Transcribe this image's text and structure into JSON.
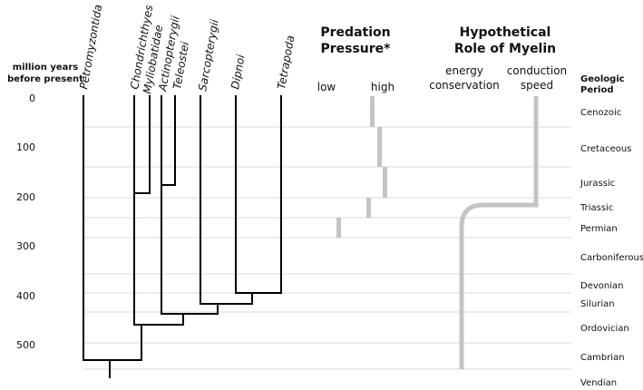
{
  "axis": {
    "label_line1": "million years",
    "label_line2": "before present",
    "ticks": [
      {
        "value": 0,
        "label": "0"
      },
      {
        "value": 100,
        "label": "100"
      },
      {
        "value": 200,
        "label": "200"
      },
      {
        "value": 300,
        "label": "300"
      },
      {
        "value": 400,
        "label": "400"
      },
      {
        "value": 500,
        "label": "500"
      }
    ]
  },
  "taxa": [
    {
      "id": "petromyzontida",
      "label": "Petromyzontida"
    },
    {
      "id": "chondrichthyes",
      "label": "Chondrichthyes"
    },
    {
      "id": "myliobatidae",
      "label": "Myliobatidae"
    },
    {
      "id": "actinopterygii",
      "label": "Actinopterygii"
    },
    {
      "id": "teleostei",
      "label": "Teleostei"
    },
    {
      "id": "sarcopterygii",
      "label": "Sarcopterygii"
    },
    {
      "id": "dipnoi",
      "label": "Dipnoi"
    },
    {
      "id": "tetrapoda",
      "label": "Tetrapoda"
    }
  ],
  "predation": {
    "title_line1": "Predation",
    "title_line2": "Pressure*",
    "low_label": "low",
    "high_label": "high"
  },
  "myelin": {
    "title_line1": "Hypothetical",
    "title_line2": "Role of Myelin",
    "left_label_line1": "energy",
    "left_label_line2": "conservation",
    "right_label_line1": "conduction",
    "right_label_line2": "speed"
  },
  "geologic": {
    "header_line1": "Geologic",
    "header_line2": "Period",
    "periods": [
      {
        "name": "Cenozoic"
      },
      {
        "name": "Cretaceous"
      },
      {
        "name": "Jurassic"
      },
      {
        "name": "Triassic"
      },
      {
        "name": "Permian"
      },
      {
        "name": "Carboniferous"
      },
      {
        "name": "Devonian"
      },
      {
        "name": "Silurian"
      },
      {
        "name": "Ordovician"
      },
      {
        "name": "Cambrian"
      },
      {
        "name": "Vendian"
      }
    ]
  }
}
